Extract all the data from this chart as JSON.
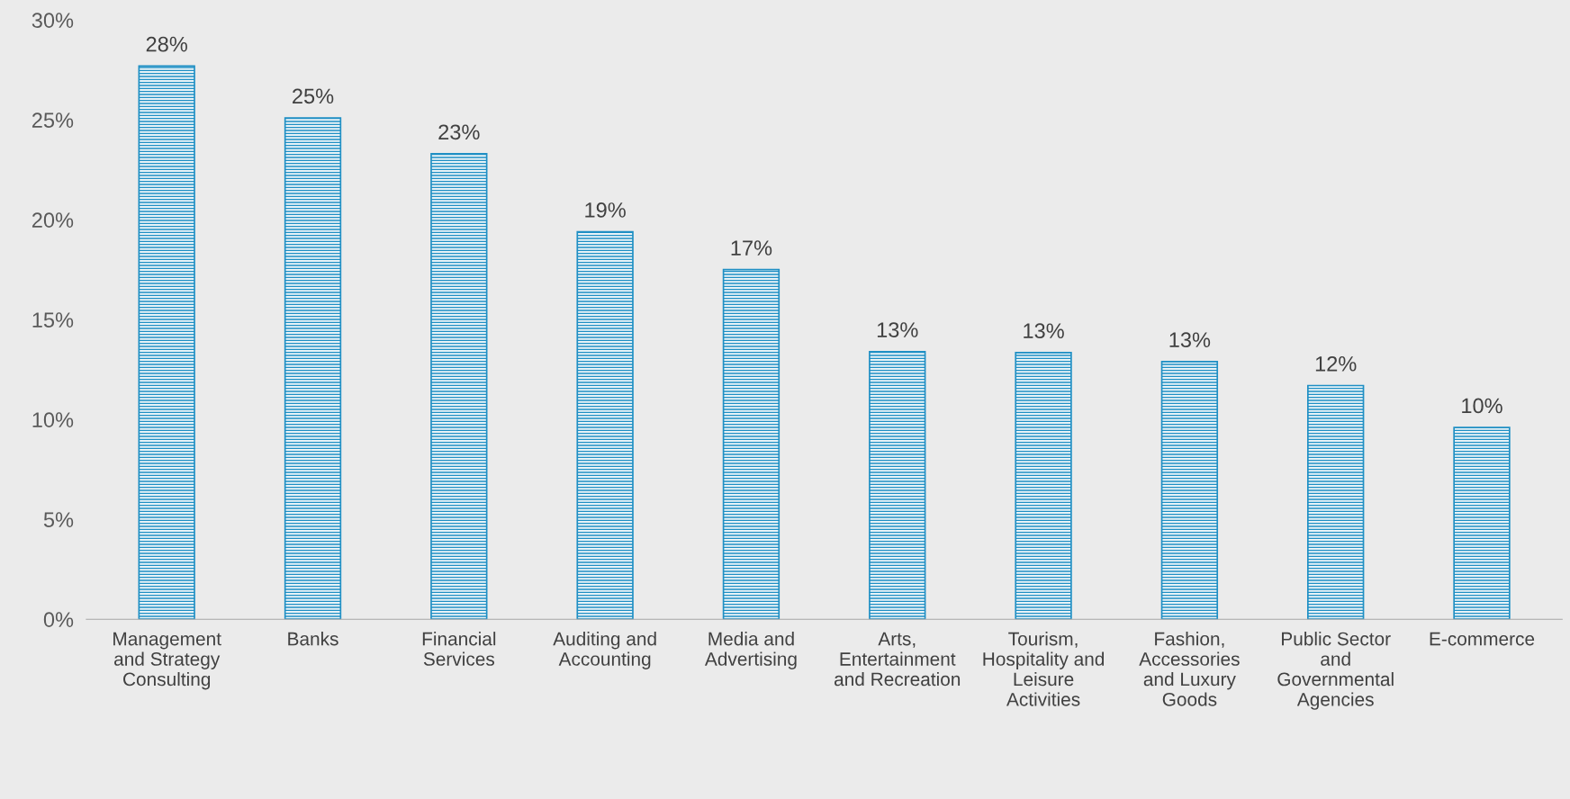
{
  "chart_data": {
    "type": "bar",
    "categories": [
      "Management and Strategy Consulting",
      "Banks",
      "Financial Services",
      "Auditing and Accounting",
      "Media and Advertising",
      "Arts, Entertainment and Recreation",
      "Tourism, Hospitality and Leisure Activities",
      "Fashion, Accessories and Luxury Goods",
      "Public Sector and Governmental Agencies",
      "E-commerce"
    ],
    "values": [
      27.7,
      25.1,
      23.3,
      19.4,
      17.5,
      13.4,
      13.35,
      12.9,
      11.7,
      9.6
    ],
    "value_labels": [
      "28%",
      "25%",
      "23%",
      "19%",
      "17%",
      "13%",
      "13%",
      "13%",
      "12%",
      "10%"
    ],
    "color": "#1f8fc4",
    "ylim": [
      0,
      30
    ],
    "yticks": [
      {
        "value": 0,
        "label": "0%"
      },
      {
        "value": 5,
        "label": "5%"
      },
      {
        "value": 10,
        "label": "10%"
      },
      {
        "value": 15,
        "label": "15%"
      },
      {
        "value": 20,
        "label": "20%"
      },
      {
        "value": 25,
        "label": "25%"
      },
      {
        "value": 30,
        "label": "30%"
      }
    ],
    "grid": false,
    "legend": false
  }
}
